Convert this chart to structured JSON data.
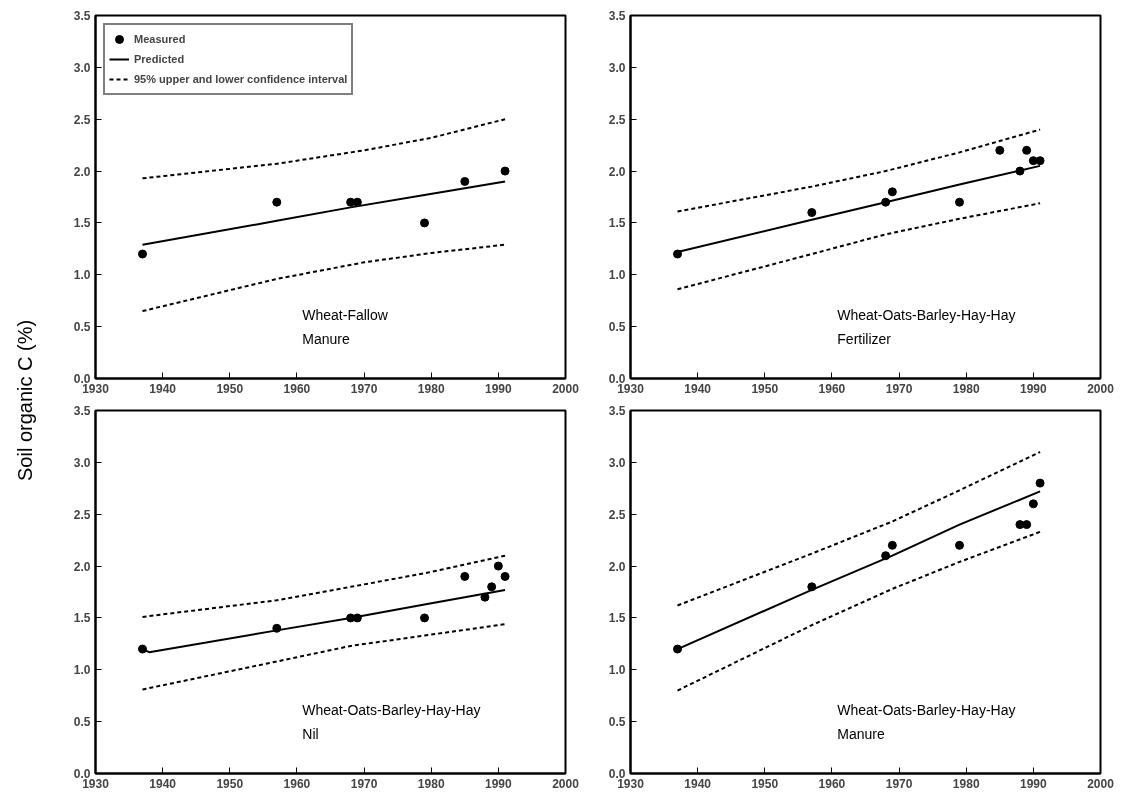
{
  "chart_data": [
    {
      "type": "scatter",
      "ylabel": "Soil organic C (%)",
      "annotations": [
        "Wheat-Fallow",
        "Manure"
      ],
      "xlim": [
        1930,
        2000
      ],
      "ylim": [
        0,
        3.5
      ],
      "xticks": [
        1930,
        1940,
        1950,
        1960,
        1970,
        1980,
        1990,
        2000
      ],
      "yticks": [
        {
          "value": 0,
          "label": "0.0"
        },
        {
          "value": 0.5,
          "label": "0.5"
        },
        {
          "value": 1,
          "label": "1.0"
        },
        {
          "value": 1.5,
          "label": "1.5"
        },
        {
          "value": 2,
          "label": "2.0"
        },
        {
          "value": 2.5,
          "label": "2.5"
        },
        {
          "value": 3,
          "label": "3.0"
        },
        {
          "value": 3.5,
          "label": "3.5"
        }
      ],
      "grid": false,
      "legend": "top left",
      "series": [
        {
          "name": "Measured",
          "marker": "circle",
          "color": "#000000",
          "x": [
            1937,
            1957,
            1968,
            1969,
            1979,
            1985,
            1991
          ],
          "values": [
            1.2,
            1.7,
            1.7,
            1.7,
            1.5,
            1.9,
            2.0
          ]
        },
        {
          "name": "Predicted",
          "type": "line",
          "line_style": "solid",
          "color": "#000000",
          "x": [
            1937,
            1957,
            1968,
            1979,
            1991
          ],
          "values": [
            1.29,
            1.52,
            1.65,
            1.77,
            1.9
          ]
        },
        {
          "name": "95% upper and lower confidence interval",
          "type": "line",
          "line_style": "dashed",
          "color": "#000000",
          "x": [
            1937,
            1957,
            1970,
            1980,
            1991
          ],
          "values": [
            1.93,
            2.07,
            2.2,
            2.32,
            2.5
          ]
        },
        {
          "type": "line",
          "line_style": "dashed",
          "color": "#000000",
          "x": [
            1937,
            1957,
            1970,
            1980,
            1991
          ],
          "values": [
            0.65,
            0.96,
            1.12,
            1.21,
            1.29
          ]
        }
      ]
    },
    {
      "type": "scatter",
      "annotations": [
        "Wheat-Oats-Barley-Hay-Hay",
        "Fertilizer"
      ],
      "xlim": [
        1930,
        2000
      ],
      "ylim": [
        0,
        3.5
      ],
      "xticks": [
        1930,
        1940,
        1950,
        1960,
        1970,
        1980,
        1990,
        2000
      ],
      "yticks": [
        {
          "value": 0,
          "label": "0.0"
        },
        {
          "value": 0.5,
          "label": "0.5"
        },
        {
          "value": 1,
          "label": "1.0"
        },
        {
          "value": 1.5,
          "label": "1.5"
        },
        {
          "value": 2,
          "label": "2.0"
        },
        {
          "value": 2.5,
          "label": "2.5"
        },
        {
          "value": 3,
          "label": "3.0"
        },
        {
          "value": 3.5,
          "label": "3.5"
        }
      ],
      "grid": false,
      "series": [
        {
          "marker": "circle",
          "color": "#000000",
          "x": [
            1937,
            1957,
            1968,
            1969,
            1979,
            1985,
            1988,
            1989,
            1990,
            1991
          ],
          "values": [
            1.2,
            1.6,
            1.7,
            1.8,
            1.7,
            2.2,
            2.0,
            2.2,
            2.1,
            2.1
          ]
        },
        {
          "type": "line",
          "line_style": "solid",
          "color": "#000000",
          "x": [
            1937,
            1957,
            1968,
            1979,
            1991
          ],
          "values": [
            1.22,
            1.53,
            1.7,
            1.87,
            2.05
          ]
        },
        {
          "type": "line",
          "line_style": "dashed",
          "color": "#000000",
          "x": [
            1937,
            1957,
            1968,
            1979,
            1991
          ],
          "values": [
            1.61,
            1.85,
            2.0,
            2.18,
            2.4
          ]
        },
        {
          "type": "line",
          "line_style": "dashed",
          "color": "#000000",
          "x": [
            1937,
            1957,
            1968,
            1979,
            1991
          ],
          "values": [
            0.86,
            1.2,
            1.39,
            1.54,
            1.69
          ]
        }
      ]
    },
    {
      "type": "scatter",
      "annotations": [
        "Wheat-Oats-Barley-Hay-Hay",
        "Nil"
      ],
      "xlim": [
        1930,
        2000
      ],
      "ylim": [
        0,
        3.5
      ],
      "xticks": [
        1930,
        1940,
        1950,
        1960,
        1970,
        1980,
        1990,
        2000
      ],
      "yticks": [
        {
          "value": 0,
          "label": "0.0"
        },
        {
          "value": 0.5,
          "label": "0.5"
        },
        {
          "value": 1,
          "label": "1.0"
        },
        {
          "value": 1.5,
          "label": "1.5"
        },
        {
          "value": 2,
          "label": "2.0"
        },
        {
          "value": 2.5,
          "label": "2.5"
        },
        {
          "value": 3,
          "label": "3.0"
        },
        {
          "value": 3.5,
          "label": "3.5"
        }
      ],
      "grid": false,
      "series": [
        {
          "marker": "circle",
          "color": "#000000",
          "x": [
            1937,
            1957,
            1968,
            1969,
            1979,
            1985,
            1988,
            1989,
            1990,
            1991
          ],
          "values": [
            1.2,
            1.4,
            1.5,
            1.5,
            1.5,
            1.9,
            1.7,
            1.8,
            2.0,
            1.9
          ]
        },
        {
          "type": "line",
          "line_style": "solid",
          "color": "#000000",
          "x": [
            1937,
            1938,
            1957,
            1968,
            1979,
            1991
          ],
          "values": [
            1.2,
            1.17,
            1.38,
            1.5,
            1.63,
            1.77
          ]
        },
        {
          "type": "line",
          "line_style": "dashed",
          "color": "#000000",
          "x": [
            1937,
            1957,
            1968,
            1979,
            1991
          ],
          "values": [
            1.51,
            1.67,
            1.8,
            1.93,
            2.1
          ]
        },
        {
          "type": "line",
          "line_style": "dashed",
          "color": "#000000",
          "x": [
            1937,
            1957,
            1968,
            1979,
            1991
          ],
          "values": [
            0.81,
            1.08,
            1.23,
            1.33,
            1.44
          ]
        }
      ]
    },
    {
      "type": "scatter",
      "annotations": [
        "Wheat-Oats-Barley-Hay-Hay",
        "Manure"
      ],
      "xlim": [
        1930,
        2000
      ],
      "ylim": [
        0,
        3.5
      ],
      "xticks": [
        1930,
        1940,
        1950,
        1960,
        1970,
        1980,
        1990,
        2000
      ],
      "yticks": [
        {
          "value": 0,
          "label": "0.0"
        },
        {
          "value": 0.5,
          "label": "0.5"
        },
        {
          "value": 1,
          "label": "1.0"
        },
        {
          "value": 1.5,
          "label": "1.5"
        },
        {
          "value": 2,
          "label": "2.0"
        },
        {
          "value": 2.5,
          "label": "2.5"
        },
        {
          "value": 3,
          "label": "3.0"
        },
        {
          "value": 3.5,
          "label": "3.5"
        }
      ],
      "grid": false,
      "series": [
        {
          "marker": "circle",
          "color": "#000000",
          "x": [
            1937,
            1957,
            1968,
            1969,
            1979,
            1988,
            1989,
            1990,
            1991
          ],
          "values": [
            1.2,
            1.8,
            2.1,
            2.2,
            2.2,
            2.4,
            2.4,
            2.6,
            2.8
          ]
        },
        {
          "type": "line",
          "line_style": "solid",
          "color": "#000000",
          "x": [
            1937,
            1957,
            1969,
            1979,
            1991
          ],
          "values": [
            1.2,
            1.77,
            2.1,
            2.4,
            2.72
          ]
        },
        {
          "type": "line",
          "line_style": "dashed",
          "color": "#000000",
          "x": [
            1937,
            1957,
            1969,
            1979,
            1991
          ],
          "values": [
            1.62,
            2.12,
            2.43,
            2.73,
            3.1
          ]
        },
        {
          "type": "line",
          "line_style": "dashed",
          "color": "#000000",
          "x": [
            1937,
            1957,
            1969,
            1979,
            1991
          ],
          "values": [
            0.8,
            1.43,
            1.78,
            2.04,
            2.33
          ]
        }
      ]
    }
  ]
}
